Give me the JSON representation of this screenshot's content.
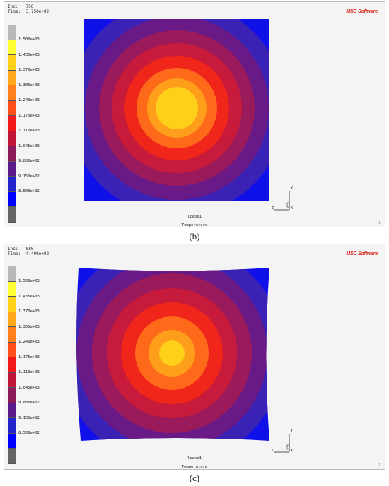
{
  "panels": [
    {
      "id": "b",
      "inc_label": "Inc:",
      "inc_value": "750",
      "time_label": "Time:",
      "time_value": "3.750e+02",
      "logo": "MSC Software",
      "legend_labels": [
        "1.500e+03",
        "1.435e+03",
        "1.370e+03",
        "1.305e+03",
        "1.240e+03",
        "1.175e+03",
        "1.110e+03",
        "1.045e+03",
        "9.800e+02",
        "9.150e+02",
        "8.500e+02"
      ],
      "lcase": "lcase1",
      "quantity": "Temperature",
      "axis_x": "X",
      "axis_y": "Y",
      "axis_z": "Z",
      "corner": "1",
      "caption": "(b)"
    },
    {
      "id": "c",
      "inc_label": "Inc:",
      "inc_value": "880",
      "time_label": "Time:",
      "time_value": "4.400e+02",
      "logo": "MSC Software",
      "legend_labels": [
        "1.500e+03",
        "1.435e+03",
        "1.370e+03",
        "1.305e+03",
        "1.240e+03",
        "1.175e+03",
        "1.110e+03",
        "1.045e+03",
        "9.800e+02",
        "9.150e+02",
        "8.500e+02"
      ],
      "lcase": "lcase1",
      "quantity": "Temperature",
      "axis_x": "X",
      "axis_y": "Y",
      "axis_z": "Z",
      "corner": "1",
      "caption": "(c)"
    }
  ],
  "legend_colors": [
    "#b9b9b9",
    "#ffff33",
    "#ffd31a",
    "#ffa81a",
    "#ff7f1a",
    "#ff4f1a",
    "#f01818",
    "#c01638",
    "#8c1a5a",
    "#5a1a8c",
    "#2424cc",
    "#0000ff",
    "#666666"
  ],
  "contour_fill_colors": [
    "#ffd01a",
    "#ff9e1a",
    "#ff6a1a",
    "#f0261a",
    "#c81a3a",
    "#9a1a5c",
    "#6a1a86",
    "#3a22b4",
    "#1010e8"
  ]
}
